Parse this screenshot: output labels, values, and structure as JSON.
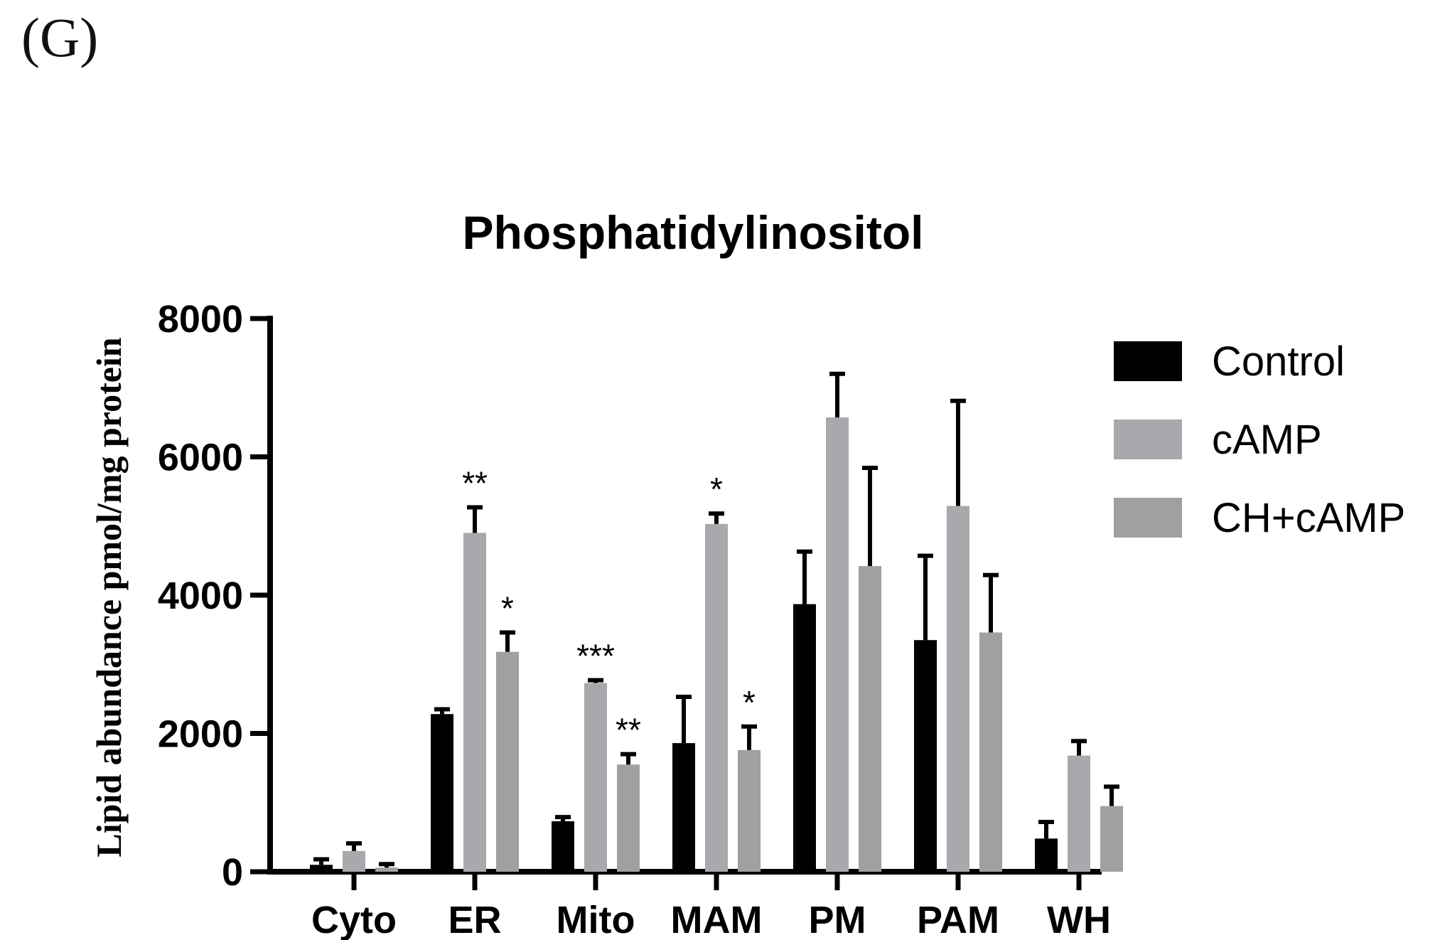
{
  "panel_label": "(G)",
  "chart_data": {
    "type": "bar",
    "title": "Phosphatidylinositol",
    "xlabel": "",
    "ylabel": "Lipid abundance pmol/mg protein",
    "ylim": [
      0,
      8000
    ],
    "yticks": [
      0,
      2000,
      4000,
      6000,
      8000
    ],
    "categories": [
      "Cyto",
      "ER",
      "Mito",
      "MAM",
      "PM",
      "PAM",
      "WH"
    ],
    "series": [
      {
        "name": "Control",
        "color": "#000000",
        "values": [
          100,
          2280,
          730,
          1860,
          3870,
          3350,
          480
        ],
        "errors": [
          80,
          70,
          60,
          670,
          760,
          1220,
          240
        ],
        "significance": [
          "",
          "",
          "",
          "",
          "",
          "",
          ""
        ]
      },
      {
        "name": "cAMP",
        "color": "#a7a9ac",
        "values": [
          300,
          4900,
          2730,
          5030,
          6570,
          5290,
          1680
        ],
        "errors": [
          110,
          370,
          40,
          150,
          630,
          1520,
          210
        ],
        "significance": [
          "",
          "**",
          "***",
          "*",
          "",
          "",
          ""
        ]
      },
      {
        "name": "CH+cAMP",
        "color": "#a0a0a0",
        "values": [
          60,
          3180,
          1550,
          1760,
          4420,
          3460,
          950
        ],
        "errors": [
          50,
          280,
          150,
          340,
          1420,
          830,
          280
        ],
        "significance": [
          "",
          "*",
          "**",
          "*",
          "",
          "",
          ""
        ]
      }
    ],
    "legend_position": "right"
  }
}
